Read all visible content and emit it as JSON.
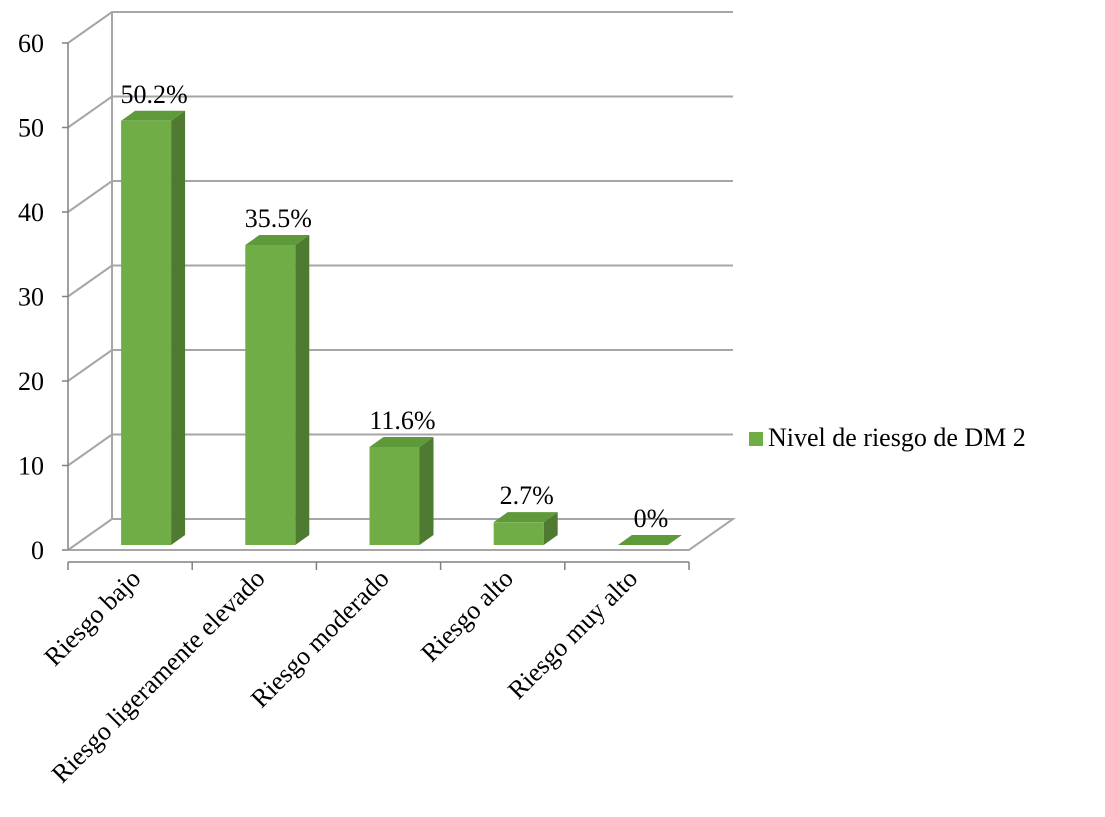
{
  "chart_data": {
    "type": "bar",
    "style": "3d-column",
    "categories": [
      "Riesgo bajo",
      "Riesgo ligeramente elevado",
      "Riesgo moderado",
      "Riesgo alto",
      "Riesgo muy alto"
    ],
    "series": [
      {
        "name": "Nivel de riesgo de DM 2",
        "values": [
          50.2,
          35.5,
          11.6,
          2.7,
          0
        ],
        "data_labels": [
          "50.2%",
          "35.5%",
          "11.6%",
          "2.7%",
          "0%"
        ],
        "color": "#70AD47"
      }
    ],
    "y_ticks": [
      "0",
      "10",
      "20",
      "30",
      "40",
      "50",
      "60"
    ],
    "ylim": [
      0,
      60
    ],
    "grid": true,
    "legend_position": "right"
  },
  "colors": {
    "bar_front": "#70AD47",
    "bar_side": "#4E7A31",
    "bar_top": "#5E9A3A",
    "grid": "#A6A6A6",
    "axis": "#808080"
  }
}
